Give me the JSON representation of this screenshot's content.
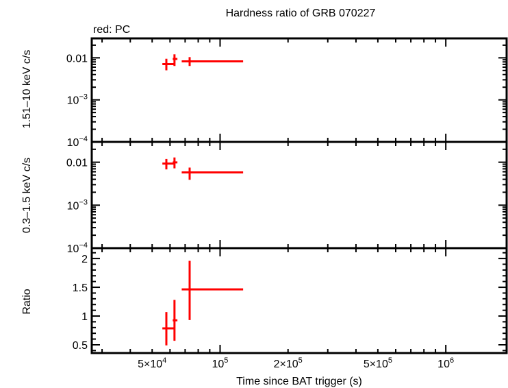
{
  "chart_data": {
    "type": "scatter",
    "title": "Hardness ratio of GRB 070227",
    "subtitle": "red: PC",
    "xlabel": "Time since BAT trigger (s)",
    "xscale": "log",
    "xlim": [
      27000,
      1860000
    ],
    "xticks": [
      {
        "value": 50000,
        "label": "5×10",
        "sup": "4"
      },
      {
        "value": 100000,
        "label": "10",
        "sup": "5"
      },
      {
        "value": 200000,
        "label": "2×10",
        "sup": "5"
      },
      {
        "value": 500000,
        "label": "5×10",
        "sup": "5"
      },
      {
        "value": 1000000,
        "label": "10",
        "sup": "6"
      }
    ],
    "series_color": "#ff0000",
    "panels": [
      {
        "ylabel": "1.51–10 keV c/s",
        "yscale": "log",
        "ylim": [
          0.0001,
          0.029
        ],
        "yticks": [
          {
            "value": 0.01,
            "label": "0.01",
            "sup": ""
          },
          {
            "value": 0.001,
            "label": "10",
            "sup": "−3"
          },
          {
            "value": 0.0001,
            "label": "10",
            "sup": "−4"
          }
        ],
        "points": [
          {
            "x": 57800,
            "xlo": 55500,
            "xhi": 62800,
            "y": 0.0071,
            "ylo": 0.00505,
            "yhi": 0.0095
          },
          {
            "x": 62800,
            "xlo": 61700,
            "xhi": 64700,
            "y": 0.0094,
            "ylo": 0.0064,
            "yhi": 0.0121
          },
          {
            "x": 73300,
            "xlo": 67600,
            "xhi": 126500,
            "y": 0.00826,
            "ylo": 0.0064,
            "yhi": 0.0104
          }
        ]
      },
      {
        "ylabel": "0.3–1.5 keV c/s",
        "yscale": "log",
        "ylim": [
          0.0001,
          0.0297
        ],
        "yticks": [
          {
            "value": 0.01,
            "label": "0.01",
            "sup": ""
          },
          {
            "value": 0.001,
            "label": "10",
            "sup": "−3"
          },
          {
            "value": 0.0001,
            "label": "10",
            "sup": "−4"
          }
        ],
        "points": [
          {
            "x": 57800,
            "xlo": 55500,
            "xhi": 62800,
            "y": 0.0093,
            "ylo": 0.0068,
            "yhi": 0.0119
          },
          {
            "x": 62800,
            "xlo": 61700,
            "xhi": 64700,
            "y": 0.0099,
            "ylo": 0.0072,
            "yhi": 0.0129
          },
          {
            "x": 73300,
            "xlo": 67600,
            "xhi": 126500,
            "y": 0.0058,
            "ylo": 0.0039,
            "yhi": 0.0075
          }
        ]
      },
      {
        "ylabel": "Ratio",
        "yscale": "linear",
        "ylim": [
          0.357,
          2.18
        ],
        "yticks": [
          {
            "value": 2,
            "label": "2",
            "sup": ""
          },
          {
            "value": 1.5,
            "label": "1.5",
            "sup": ""
          },
          {
            "value": 1,
            "label": "1",
            "sup": ""
          },
          {
            "value": 0.5,
            "label": "0.5",
            "sup": ""
          }
        ],
        "points": [
          {
            "x": 57800,
            "xlo": 55500,
            "xhi": 62800,
            "y": 0.786,
            "ylo": 0.49,
            "yhi": 1.07
          },
          {
            "x": 62800,
            "xlo": 61700,
            "xhi": 64700,
            "y": 0.926,
            "ylo": 0.57,
            "yhi": 1.28
          },
          {
            "x": 73300,
            "xlo": 67600,
            "xhi": 126500,
            "y": 1.463,
            "ylo": 0.93,
            "yhi": 1.96
          }
        ]
      }
    ]
  }
}
